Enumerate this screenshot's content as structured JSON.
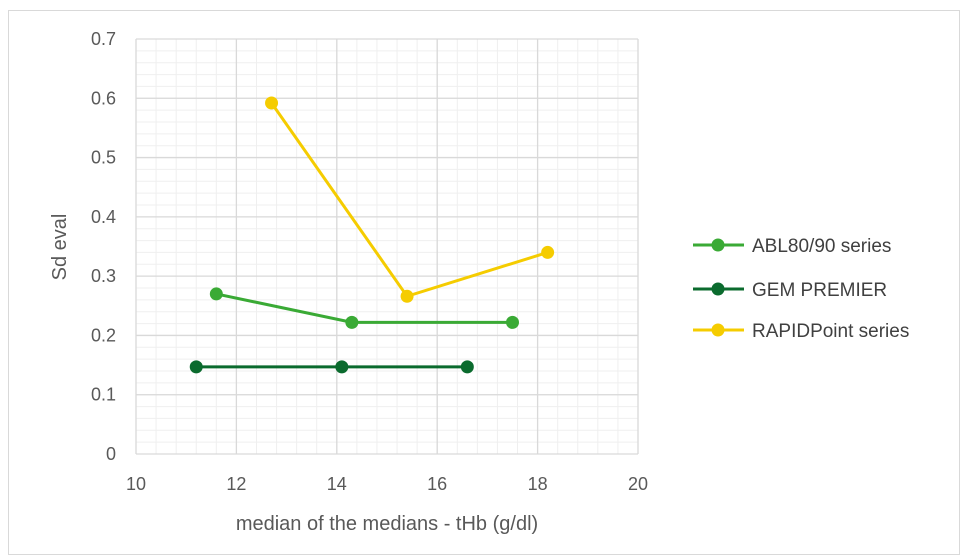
{
  "chart_data": {
    "type": "line",
    "xlabel": "median of the medians - tHb (g/dl)",
    "ylabel": "Sd eval",
    "xlim": [
      10,
      20
    ],
    "ylim": [
      0,
      0.7
    ],
    "x_ticks": [
      "10",
      "12",
      "14",
      "16",
      "18",
      "20"
    ],
    "y_ticks": [
      "0",
      "0.1",
      "0.2",
      "0.3",
      "0.4",
      "0.5",
      "0.6",
      "0.7"
    ],
    "grid": true,
    "minor_grid": true,
    "legend_position": "right",
    "series": [
      {
        "name": "ABL80/90 series",
        "color": "#3aaa35",
        "points": [
          [
            11.6,
            0.27
          ],
          [
            14.3,
            0.222
          ],
          [
            17.5,
            0.222
          ]
        ]
      },
      {
        "name": "GEM PREMIER",
        "color": "#0b6b2e",
        "points": [
          [
            11.2,
            0.147
          ],
          [
            14.1,
            0.147
          ],
          [
            16.6,
            0.147
          ]
        ]
      },
      {
        "name": "RAPIDPoint series",
        "color": "#f5cc00",
        "points": [
          [
            12.7,
            0.592
          ],
          [
            15.4,
            0.266
          ],
          [
            18.2,
            0.34
          ]
        ]
      }
    ]
  }
}
